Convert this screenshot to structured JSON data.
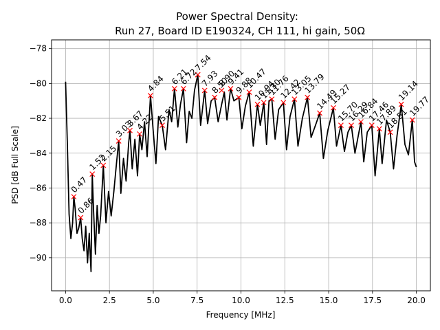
{
  "chart_data": {
    "type": "line",
    "title_line1": "Power Spectral Density:",
    "title_line2": "Run 27, Board ID E190324, CH 111, hi gain, 50Ω",
    "xlabel": "Frequency [MHz]",
    "ylabel": "PSD [dB Full Scale]",
    "xlim": [
      -0.8,
      20.8
    ],
    "ylim": [
      -91.9,
      -77.5
    ],
    "grid": true,
    "x_ticks": [
      0,
      2.5,
      5,
      7.5,
      10,
      12.5,
      15,
      17.5,
      20
    ],
    "x_tick_labels": [
      "0.0",
      "2.5",
      "5.0",
      "7.5",
      "10.0",
      "12.5",
      "15.0",
      "17.5",
      "20.0"
    ],
    "y_ticks": [
      -90,
      -88,
      -86,
      -84,
      -82,
      -80,
      -78
    ],
    "y_tick_labels": [
      "−90",
      "−88",
      "−86",
      "−84",
      "−82",
      "−80",
      "−78"
    ],
    "line_color": "#000000",
    "marker_color": "#ff0000",
    "series": [
      {
        "x": [
          0.0,
          0.1,
          0.2,
          0.3,
          0.4,
          0.47,
          0.55,
          0.65,
          0.75,
          0.86,
          0.95,
          1.05,
          1.15,
          1.25,
          1.35,
          1.45,
          1.52,
          1.6,
          1.7,
          1.8,
          1.9,
          2.0,
          2.15,
          2.3,
          2.45,
          2.6,
          2.75,
          2.9,
          3.03,
          3.15,
          3.3,
          3.45,
          3.6,
          3.67,
          3.8,
          3.95,
          4.1,
          4.22,
          4.35,
          4.5,
          4.65,
          4.84,
          5.0,
          5.15,
          5.3,
          5.51,
          5.7,
          5.9,
          6.05,
          6.21,
          6.4,
          6.55,
          6.72,
          6.9,
          7.05,
          7.2,
          7.35,
          7.54,
          7.7,
          7.93,
          8.1,
          8.3,
          8.5,
          8.7,
          8.9,
          9.05,
          9.2,
          9.41,
          9.6,
          9.88,
          10.05,
          10.25,
          10.47,
          10.7,
          10.94,
          11.1,
          11.3,
          11.46,
          11.6,
          11.76,
          11.95,
          12.15,
          12.42,
          12.6,
          12.8,
          13.05,
          13.25,
          13.5,
          13.79,
          14.0,
          14.25,
          14.49,
          14.7,
          14.95,
          15.27,
          15.45,
          15.7,
          15.9,
          16.1,
          16.29,
          16.5,
          16.84,
          17.0,
          17.2,
          17.46,
          17.65,
          17.89,
          18.05,
          18.3,
          18.51,
          18.7,
          18.9,
          19.14,
          19.35,
          19.55,
          19.77,
          19.9,
          20.0
        ],
        "y": [
          -79.9,
          -83.5,
          -87.5,
          -88.9,
          -88.0,
          -86.5,
          -87.2,
          -88.6,
          -88.3,
          -87.7,
          -88.9,
          -89.6,
          -88.2,
          -90.3,
          -88.6,
          -90.8,
          -85.2,
          -87.4,
          -89.8,
          -87.0,
          -88.6,
          -87.6,
          -84.7,
          -88.0,
          -86.2,
          -87.6,
          -86.2,
          -84.6,
          -83.3,
          -86.3,
          -84.3,
          -85.6,
          -83.4,
          -82.7,
          -84.9,
          -83.2,
          -85.3,
          -82.9,
          -83.8,
          -82.2,
          -84.2,
          -80.7,
          -82.8,
          -84.6,
          -81.9,
          -82.4,
          -83.8,
          -81.5,
          -82.2,
          -80.3,
          -82.5,
          -81.2,
          -80.3,
          -83.4,
          -81.6,
          -82.0,
          -80.4,
          -79.5,
          -82.4,
          -80.4,
          -82.3,
          -81.0,
          -80.8,
          -82.2,
          -81.2,
          -80.5,
          -82.1,
          -80.3,
          -81.0,
          -80.8,
          -82.6,
          -81.3,
          -80.5,
          -83.6,
          -81.2,
          -82.4,
          -81.1,
          -83.5,
          -81.0,
          -80.9,
          -83.2,
          -81.5,
          -81.1,
          -83.8,
          -81.9,
          -80.9,
          -83.6,
          -82.0,
          -80.8,
          -83.1,
          -82.4,
          -81.7,
          -84.3,
          -82.7,
          -81.4,
          -83.6,
          -82.4,
          -83.9,
          -82.8,
          -82.4,
          -84.0,
          -82.2,
          -84.5,
          -82.8,
          -82.4,
          -85.3,
          -82.6,
          -84.6,
          -82.1,
          -82.8,
          -84.9,
          -83.0,
          -81.2,
          -83.5,
          -84.1,
          -82.1,
          -84.5,
          -84.8
        ]
      }
    ],
    "peaks": [
      {
        "x": 0.47,
        "y": -86.5,
        "label": "0.47"
      },
      {
        "x": 0.86,
        "y": -87.7,
        "label": "0.86"
      },
      {
        "x": 1.52,
        "y": -85.2,
        "label": "1.52"
      },
      {
        "x": 2.15,
        "y": -84.7,
        "label": "2.15"
      },
      {
        "x": 3.03,
        "y": -83.3,
        "label": "3.03"
      },
      {
        "x": 3.67,
        "y": -82.7,
        "label": "3.67"
      },
      {
        "x": 4.22,
        "y": -82.9,
        "label": "4.22"
      },
      {
        "x": 4.84,
        "y": -80.7,
        "label": "4.84"
      },
      {
        "x": 5.51,
        "y": -82.4,
        "label": "5.51"
      },
      {
        "x": 6.21,
        "y": -80.3,
        "label": "6.21"
      },
      {
        "x": 6.72,
        "y": -80.3,
        "label": "6.72"
      },
      {
        "x": 7.54,
        "y": -79.5,
        "label": "7.54"
      },
      {
        "x": 7.93,
        "y": -80.4,
        "label": "7.93"
      },
      {
        "x": 8.5,
        "y": -80.8,
        "label": "8.50"
      },
      {
        "x": 8.9,
        "y": -80.4,
        "label": "8.90"
      },
      {
        "x": 9.41,
        "y": -80.3,
        "label": "9.41"
      },
      {
        "x": 9.88,
        "y": -80.8,
        "label": "9.88"
      },
      {
        "x": 10.47,
        "y": -80.5,
        "label": "10.47"
      },
      {
        "x": 10.94,
        "y": -81.2,
        "label": "10.94"
      },
      {
        "x": 11.3,
        "y": -81.1,
        "label": "11.30"
      },
      {
        "x": 11.76,
        "y": -80.9,
        "label": "11.76"
      },
      {
        "x": 12.42,
        "y": -81.1,
        "label": "12.42"
      },
      {
        "x": 13.05,
        "y": -80.9,
        "label": "13.05"
      },
      {
        "x": 13.79,
        "y": -80.8,
        "label": "13.79"
      },
      {
        "x": 14.49,
        "y": -81.7,
        "label": "14.49"
      },
      {
        "x": 15.27,
        "y": -81.4,
        "label": "15.27"
      },
      {
        "x": 15.7,
        "y": -82.4,
        "label": "15.70"
      },
      {
        "x": 16.29,
        "y": -82.4,
        "label": "16.29"
      },
      {
        "x": 16.84,
        "y": -82.2,
        "label": "16.84"
      },
      {
        "x": 17.46,
        "y": -82.4,
        "label": "17.46"
      },
      {
        "x": 17.89,
        "y": -82.6,
        "label": "17.89"
      },
      {
        "x": 18.51,
        "y": -82.8,
        "label": "18.51"
      },
      {
        "x": 19.14,
        "y": -81.2,
        "label": "19.14"
      },
      {
        "x": 19.77,
        "y": -82.1,
        "label": "19.77"
      }
    ]
  }
}
